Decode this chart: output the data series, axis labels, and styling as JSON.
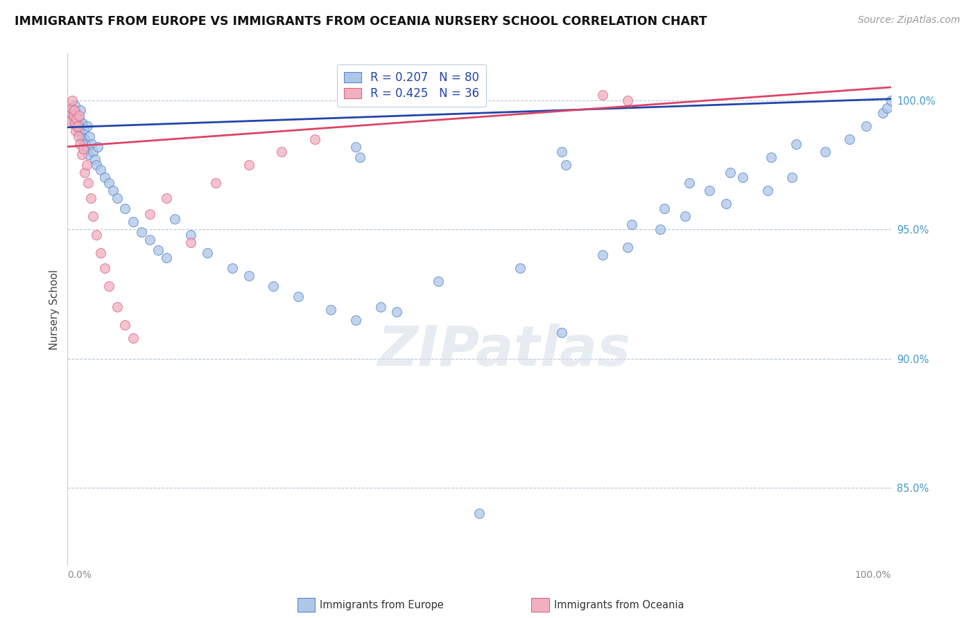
{
  "title": "IMMIGRANTS FROM EUROPE VS IMMIGRANTS FROM OCEANIA NURSERY SCHOOL CORRELATION CHART",
  "source": "Source: ZipAtlas.com",
  "ylabel": "Nursery School",
  "xmin": 0.0,
  "xmax": 100.0,
  "ymin": 82.0,
  "ymax": 101.8,
  "blue_R": 0.207,
  "blue_N": 80,
  "pink_R": 0.425,
  "pink_N": 36,
  "blue_color": "#aec6e8",
  "blue_edge": "#5588cc",
  "pink_color": "#f0b0c0",
  "pink_edge": "#dd6688",
  "blue_line_color": "#2244aa",
  "pink_line_color": "#dd4466",
  "legend_label_blue": "Immigrants from Europe",
  "legend_label_pink": "Immigrants from Oceania",
  "watermark": "ZIPatlas",
  "watermark_color": "#d5dde8",
  "background_color": "#ffffff",
  "grid_color": "#b8c8d8",
  "yticks": [
    85.0,
    90.0,
    95.0,
    100.0
  ],
  "ytick_labels": [
    "85.0%",
    "90.0%",
    "95.0%",
    "100.0%"
  ],
  "title_fontsize": 12.5,
  "marker_size": 100,
  "blue_line_start_y": 98.95,
  "blue_line_end_y": 100.05,
  "pink_line_start_y": 98.2,
  "pink_line_end_y": 100.5,
  "blue_scatter_x": [
    0.3,
    0.4,
    0.5,
    0.6,
    0.7,
    0.8,
    0.9,
    1.0,
    1.1,
    1.2,
    1.3,
    1.4,
    1.5,
    1.6,
    1.7,
    1.8,
    1.9,
    2.0,
    2.1,
    2.2,
    2.3,
    2.4,
    2.5,
    2.7,
    2.9,
    3.1,
    3.3,
    3.5,
    3.7,
    4.0,
    4.5,
    5.0,
    5.5,
    6.0,
    7.0,
    8.0,
    9.0,
    10.0,
    11.0,
    12.0,
    13.0,
    15.0,
    17.0,
    20.0,
    22.0,
    25.0,
    28.0,
    32.0,
    35.0,
    38.0,
    40.0,
    45.0,
    50.0,
    55.0,
    60.0,
    65.0,
    68.0,
    72.0,
    75.0,
    80.0,
    85.0,
    88.0,
    92.0,
    95.0,
    97.0,
    99.0,
    99.5,
    100.0,
    35.5,
    35.0,
    60.5,
    60.0,
    75.5,
    80.5,
    85.5,
    88.5,
    68.5,
    72.5,
    78.0,
    82.0
  ],
  "blue_scatter_y": [
    99.6,
    99.3,
    99.7,
    99.4,
    99.5,
    99.2,
    99.8,
    99.0,
    99.5,
    99.1,
    98.8,
    99.3,
    98.9,
    99.6,
    98.6,
    99.1,
    98.4,
    98.9,
    98.5,
    98.3,
    98.1,
    99.0,
    97.9,
    98.6,
    98.3,
    98.0,
    97.7,
    97.5,
    98.2,
    97.3,
    97.0,
    96.8,
    96.5,
    96.2,
    95.8,
    95.3,
    94.9,
    94.6,
    94.2,
    93.9,
    95.4,
    94.8,
    94.1,
    93.5,
    93.2,
    92.8,
    92.4,
    91.9,
    91.5,
    92.0,
    91.8,
    93.0,
    84.0,
    93.5,
    91.0,
    94.0,
    94.3,
    95.0,
    95.5,
    96.0,
    96.5,
    97.0,
    98.0,
    98.5,
    99.0,
    99.5,
    99.7,
    100.0,
    97.8,
    98.2,
    97.5,
    98.0,
    96.8,
    97.2,
    97.8,
    98.3,
    95.2,
    95.8,
    96.5,
    97.0
  ],
  "pink_scatter_x": [
    0.3,
    0.4,
    0.5,
    0.6,
    0.7,
    0.8,
    0.9,
    1.0,
    1.1,
    1.2,
    1.3,
    1.4,
    1.5,
    1.7,
    1.9,
    2.1,
    2.3,
    2.5,
    2.8,
    3.1,
    3.5,
    4.0,
    4.5,
    5.0,
    6.0,
    7.0,
    8.0,
    10.0,
    12.0,
    15.0,
    18.0,
    22.0,
    26.0,
    30.0,
    65.0,
    68.0
  ],
  "pink_scatter_y": [
    99.5,
    99.2,
    99.7,
    100.0,
    99.4,
    99.6,
    99.1,
    98.8,
    99.3,
    99.0,
    98.6,
    99.4,
    98.3,
    97.9,
    98.1,
    97.2,
    97.5,
    96.8,
    96.2,
    95.5,
    94.8,
    94.1,
    93.5,
    92.8,
    92.0,
    91.3,
    90.8,
    95.6,
    96.2,
    94.5,
    96.8,
    97.5,
    98.0,
    98.5,
    100.2,
    100.0
  ]
}
